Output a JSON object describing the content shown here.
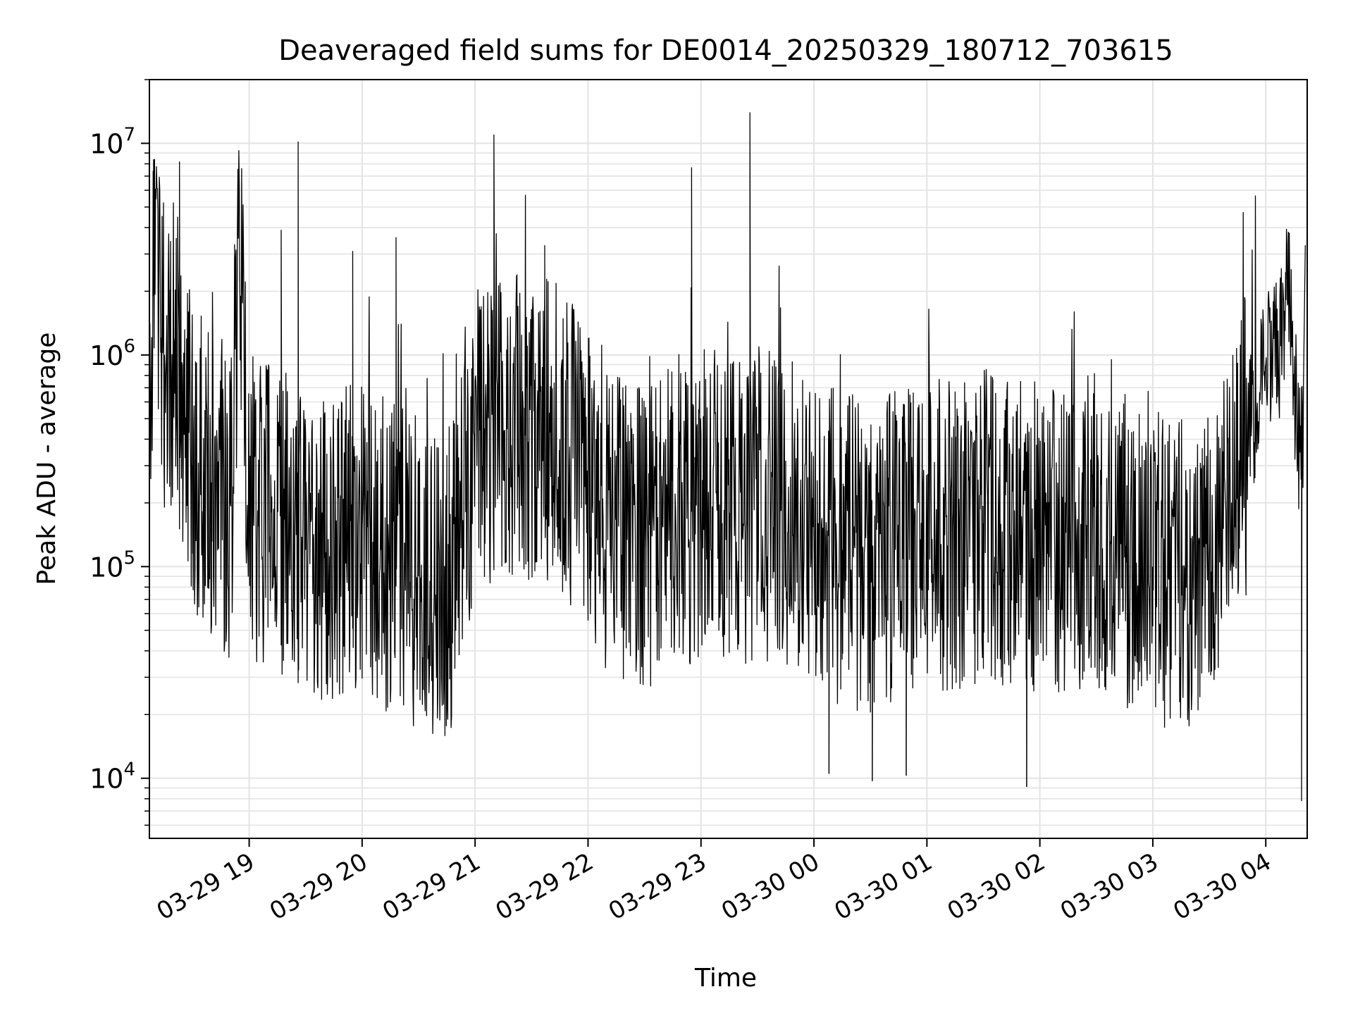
{
  "chart_data": {
    "type": "line",
    "title": "Deaveraged field sums for DE0014_20250329_180712_703615",
    "xlabel": "Time",
    "ylabel": "Peak ADU - average",
    "y_scale": "log",
    "x_range": [
      "03-29 18:07",
      "03-30 04:22"
    ],
    "ylim": [
      5200,
      20000000
    ],
    "grid": "both (major and minor)",
    "line_color": "#000000",
    "x_ticks": [
      "03-29 19",
      "03-29 20",
      "03-29 21",
      "03-29 22",
      "03-29 23",
      "03-30 00",
      "03-30 01",
      "03-30 02",
      "03-30 03",
      "03-30 04"
    ],
    "y_ticks": [
      {
        "base": "10",
        "exp": "4",
        "value": 10000
      },
      {
        "base": "10",
        "exp": "5",
        "value": 100000
      },
      {
        "base": "10",
        "exp": "6",
        "value": 1000000
      },
      {
        "base": "10",
        "exp": "7",
        "value": 10000000
      }
    ],
    "series": [
      {
        "points": [
          [
            "03-29 18:07",
            900000
          ],
          [
            "03-29 18:09",
            1900000
          ],
          [
            "03-29 18:12",
            2200000
          ],
          [
            "03-29 18:15",
            1000000
          ],
          [
            "03-29 18:18",
            700000
          ],
          [
            "03-29 18:20",
            1200000
          ],
          [
            "03-29 18:22",
            4500000
          ],
          [
            "03-29 18:23",
            8200000
          ],
          [
            "03-29 18:25",
            600000
          ],
          [
            "03-29 18:30",
            300000
          ],
          [
            "03-29 18:40",
            250000
          ],
          [
            "03-29 18:50",
            200000
          ],
          [
            "03-29 18:55",
            2500000
          ],
          [
            "03-29 19:00",
            180000
          ],
          [
            "03-29 19:10",
            170000
          ],
          [
            "03-29 19:17",
            3900000
          ],
          [
            "03-29 19:20",
            150000
          ],
          [
            "03-29 19:26",
            10200000
          ],
          [
            "03-29 19:30",
            120000
          ],
          [
            "03-29 19:40",
            110000
          ],
          [
            "03-29 19:55",
            3100000
          ],
          [
            "03-29 20:00",
            150000
          ],
          [
            "03-29 20:10",
            120000
          ],
          [
            "03-29 20:18",
            3600000
          ],
          [
            "03-29 20:30",
            90000
          ],
          [
            "03-29 20:45",
            70000
          ],
          [
            "03-29 20:55",
            250000
          ],
          [
            "03-29 21:05",
            450000
          ],
          [
            "03-29 21:10",
            11000000
          ],
          [
            "03-29 21:20",
            500000
          ],
          [
            "03-29 21:30",
            450000
          ],
          [
            "03-29 21:37",
            3300000
          ],
          [
            "03-29 21:45",
            400000
          ],
          [
            "03-29 22:00",
            250000
          ],
          [
            "03-29 22:15",
            150000
          ],
          [
            "03-29 22:30",
            120000
          ],
          [
            "03-29 22:45",
            180000
          ],
          [
            "03-29 22:55",
            7700000
          ],
          [
            "03-29 23:00",
            200000
          ],
          [
            "03-29 23:15",
            180000
          ],
          [
            "03-29 23:26",
            14000000
          ],
          [
            "03-29 23:30",
            200000
          ],
          [
            "03-29 23:45",
            180000
          ],
          [
            "03-30 00:00",
            150000
          ],
          [
            "03-30 00:15",
            120000
          ],
          [
            "03-30 00:30",
            110000
          ],
          [
            "03-30 00:45",
            130000
          ],
          [
            "03-30 01:00",
            150000
          ],
          [
            "03-30 01:15",
            140000
          ],
          [
            "03-30 01:30",
            160000
          ],
          [
            "03-30 01:45",
            150000
          ],
          [
            "03-30 02:00",
            130000
          ],
          [
            "03-30 02:15",
            140000
          ],
          [
            "03-30 02:30",
            150000
          ],
          [
            "03-30 02:45",
            120000
          ],
          [
            "03-30 03:00",
            100000
          ],
          [
            "03-30 03:15",
            90000
          ],
          [
            "03-30 03:30",
            100000
          ],
          [
            "03-30 03:40",
            150000
          ],
          [
            "03-30 03:50",
            400000
          ],
          [
            "03-30 04:00",
            900000
          ],
          [
            "03-30 04:08",
            1100000
          ],
          [
            "03-30 04:12",
            2600000
          ],
          [
            "03-30 04:17",
            400000
          ],
          [
            "03-30 04:19",
            7800
          ],
          [
            "03-30 04:21",
            3300000
          ]
        ],
        "extrema": [
          [
            "03-29 18:23",
            8200000
          ],
          [
            "03-29 19:26",
            10200000
          ],
          [
            "03-29 21:10",
            11000000
          ],
          [
            "03-29 22:55",
            7700000
          ],
          [
            "03-29 23:26",
            14000000
          ],
          [
            "03-30 00:08",
            10500
          ],
          [
            "03-30 00:31",
            9700
          ],
          [
            "03-30 00:49",
            10300
          ],
          [
            "03-30 01:53",
            9100
          ],
          [
            "03-30 04:19",
            7800
          ]
        ]
      }
    ]
  }
}
